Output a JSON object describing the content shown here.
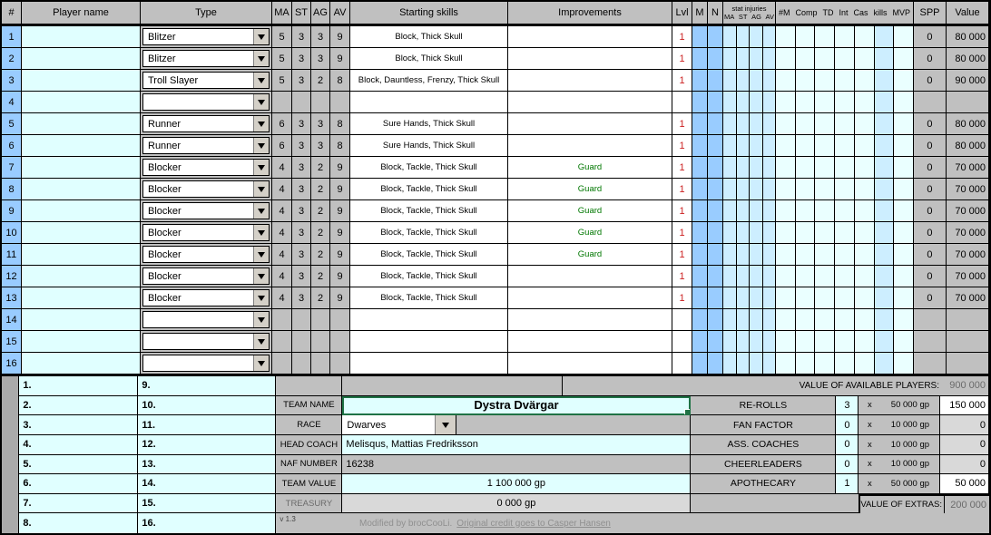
{
  "header": {
    "num": "#",
    "name": "Player name",
    "type": "Type",
    "ma": "MA",
    "st": "ST",
    "ag": "AG",
    "av": "AV",
    "skills": "Starting skills",
    "improvements": "Improvements",
    "lvl": "Lvl",
    "m": "M",
    "n": "N",
    "stat_injuries": "stat injuries",
    "si_ma": "MA",
    "si_st": "ST",
    "si_ag": "AG",
    "si_av": "AV",
    "hm": "#M",
    "comp": "Comp",
    "td": "TD",
    "int": "Int",
    "cas": "Cas",
    "kills": "kills",
    "mvp": "MVP",
    "spp": "SPP",
    "value": "Value"
  },
  "players": [
    {
      "num": "1",
      "name": "",
      "type": "Blitzer",
      "ma": "5",
      "st": "3",
      "ag": "3",
      "av": "9",
      "skills": "Block, Thick Skull",
      "improvements": "",
      "lvl": "1",
      "spp": "0",
      "value": "80 000"
    },
    {
      "num": "2",
      "name": "",
      "type": "Blitzer",
      "ma": "5",
      "st": "3",
      "ag": "3",
      "av": "9",
      "skills": "Block, Thick Skull",
      "improvements": "",
      "lvl": "1",
      "spp": "0",
      "value": "80 000"
    },
    {
      "num": "3",
      "name": "",
      "type": "Troll Slayer",
      "ma": "5",
      "st": "3",
      "ag": "2",
      "av": "8",
      "skills": "Block, Dauntless, Frenzy, Thick Skull",
      "improvements": "",
      "lvl": "1",
      "spp": "0",
      "value": "90 000"
    },
    {
      "num": "4",
      "name": "",
      "type": "",
      "ma": "",
      "st": "",
      "ag": "",
      "av": "",
      "skills": "",
      "improvements": "",
      "lvl": "",
      "spp": "",
      "value": ""
    },
    {
      "num": "5",
      "name": "",
      "type": "Runner",
      "ma": "6",
      "st": "3",
      "ag": "3",
      "av": "8",
      "skills": "Sure Hands, Thick Skull",
      "improvements": "",
      "lvl": "1",
      "spp": "0",
      "value": "80 000"
    },
    {
      "num": "6",
      "name": "",
      "type": "Runner",
      "ma": "6",
      "st": "3",
      "ag": "3",
      "av": "8",
      "skills": "Sure Hands, Thick Skull",
      "improvements": "",
      "lvl": "1",
      "spp": "0",
      "value": "80 000"
    },
    {
      "num": "7",
      "name": "",
      "type": "Blocker",
      "ma": "4",
      "st": "3",
      "ag": "2",
      "av": "9",
      "skills": "Block, Tackle, Thick Skull",
      "improvements": "Guard",
      "lvl": "1",
      "spp": "0",
      "value": "70 000"
    },
    {
      "num": "8",
      "name": "",
      "type": "Blocker",
      "ma": "4",
      "st": "3",
      "ag": "2",
      "av": "9",
      "skills": "Block, Tackle, Thick Skull",
      "improvements": "Guard",
      "lvl": "1",
      "spp": "0",
      "value": "70 000"
    },
    {
      "num": "9",
      "name": "",
      "type": "Blocker",
      "ma": "4",
      "st": "3",
      "ag": "2",
      "av": "9",
      "skills": "Block, Tackle, Thick Skull",
      "improvements": "Guard",
      "lvl": "1",
      "spp": "0",
      "value": "70 000"
    },
    {
      "num": "10",
      "name": "",
      "type": "Blocker",
      "ma": "4",
      "st": "3",
      "ag": "2",
      "av": "9",
      "skills": "Block, Tackle, Thick Skull",
      "improvements": "Guard",
      "lvl": "1",
      "spp": "0",
      "value": "70 000"
    },
    {
      "num": "11",
      "name": "",
      "type": "Blocker",
      "ma": "4",
      "st": "3",
      "ag": "2",
      "av": "9",
      "skills": "Block, Tackle, Thick Skull",
      "improvements": "Guard",
      "lvl": "1",
      "spp": "0",
      "value": "70 000"
    },
    {
      "num": "12",
      "name": "",
      "type": "Blocker",
      "ma": "4",
      "st": "3",
      "ag": "2",
      "av": "9",
      "skills": "Block, Tackle, Thick Skull",
      "improvements": "",
      "lvl": "1",
      "spp": "0",
      "value": "70 000"
    },
    {
      "num": "13",
      "name": "",
      "type": "Blocker",
      "ma": "4",
      "st": "3",
      "ag": "2",
      "av": "9",
      "skills": "Block, Tackle, Thick Skull",
      "improvements": "",
      "lvl": "1",
      "spp": "0",
      "value": "70 000"
    },
    {
      "num": "14",
      "name": "",
      "type": "",
      "ma": "",
      "st": "",
      "ag": "",
      "av": "",
      "skills": "",
      "improvements": "",
      "lvl": "",
      "spp": "",
      "value": ""
    },
    {
      "num": "15",
      "name": "",
      "type": "",
      "ma": "",
      "st": "",
      "ag": "",
      "av": "",
      "skills": "",
      "improvements": "",
      "lvl": "",
      "spp": "",
      "value": ""
    },
    {
      "num": "16",
      "name": "",
      "type": "",
      "ma": "",
      "st": "",
      "ag": "",
      "av": "",
      "skills": "",
      "improvements": "",
      "lvl": "",
      "spp": "",
      "value": ""
    }
  ],
  "roster_list": {
    "left": [
      "1.",
      "2.",
      "3.",
      "4.",
      "5.",
      "6.",
      "7.",
      "8."
    ],
    "right": [
      "9.",
      "10.",
      "11.",
      "12.",
      "13.",
      "14.",
      "15.",
      "16."
    ]
  },
  "team": {
    "name_label": "TEAM NAME",
    "name": "Dystra Dvärgar",
    "race_label": "RACE",
    "race": "Dwarves",
    "coach_label": "HEAD COACH",
    "coach": "Melisqus, Mattias Fredriksson",
    "naf_label": "NAF NUMBER",
    "naf": "16238",
    "value_label": "TEAM VALUE",
    "value": "1 100 000  gp",
    "treasury_label": "TREASURY",
    "treasury": "0 000  gp"
  },
  "summary": {
    "available_label": "VALUE OF AVAILABLE PLAYERS:",
    "available_value": "900 000",
    "rows": [
      {
        "label": "RE-ROLLS",
        "count": "3",
        "x": "x",
        "price": "50 000  gp",
        "total": "150 000"
      },
      {
        "label": "FAN FACTOR",
        "count": "0",
        "x": "x",
        "price": "10 000  gp",
        "total": "0"
      },
      {
        "label": "ASS. COACHES",
        "count": "0",
        "x": "x",
        "price": "10 000  gp",
        "total": "0"
      },
      {
        "label": "CHEERLEADERS",
        "count": "0",
        "x": "x",
        "price": "10 000  gp",
        "total": "0"
      },
      {
        "label": "APOTHECARY",
        "count": "1",
        "x": "x",
        "price": "50 000  gp",
        "total": "50 000"
      }
    ],
    "extras_label": "VALUE OF EXTRAS:",
    "extras_value": "200 000"
  },
  "footer": {
    "version": "v 1.3",
    "modified": "Modified by brocCooLi.",
    "credit": "Original credit goes to Casper Hansen"
  },
  "colors": {
    "header_gray": "#c0c0c0",
    "row_number_blue": "#99ccff",
    "input_cyan": "#e0ffff",
    "injury_blue": "#cdeeff",
    "stat_pale": "#eaffff",
    "level_red": "#cc2222",
    "improvement_green": "#007700",
    "selection_green": "#1f7245"
  }
}
